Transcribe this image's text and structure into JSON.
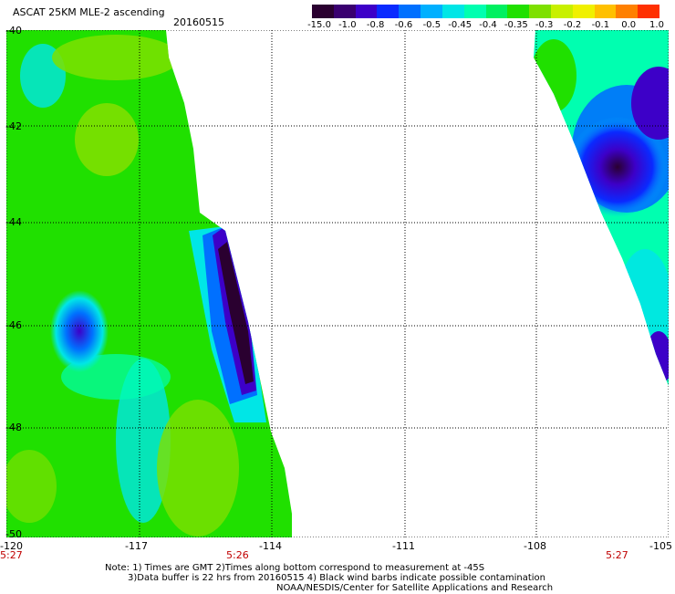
{
  "header": {
    "title": "ASCAT 25KM MLE-2 ascending",
    "date": "20160515"
  },
  "colorbar": {
    "colors": [
      "#2a0030",
      "#3a0070",
      "#3d00c8",
      "#0a2aff",
      "#0070ff",
      "#00b0ff",
      "#00e6e6",
      "#00ffb0",
      "#00f060",
      "#20e000",
      "#7ee000",
      "#c8f000",
      "#f0f000",
      "#ffc000",
      "#ff8000",
      "#ff3000"
    ],
    "tick_labels": [
      "-15.0",
      "-1.0",
      "-0.8",
      "-0.6",
      "-0.5",
      "-0.45",
      "-0.4",
      "-0.35",
      "-0.3",
      "-0.2",
      "-0.1",
      "0.0",
      "1.0"
    ]
  },
  "axes": {
    "y_labels": [
      "-40",
      "-42",
      "-44",
      "-46",
      "-48",
      "-50"
    ],
    "x_labels": [
      "-120",
      "-117",
      "-114",
      "-111",
      "-108",
      "-105"
    ],
    "time_labels": [
      "5:27",
      "5:26",
      "5:27"
    ]
  },
  "notes": {
    "line1": "Note: 1) Times are GMT 2)Times along bottom correspond to measurement at -45S",
    "line2": "3)Data buffer is 22 hrs from 20160515 4) Black wind barbs indicate possible contamination",
    "line3": "NOAA/NESDIS/Center for Satellite Applications and Research"
  }
}
